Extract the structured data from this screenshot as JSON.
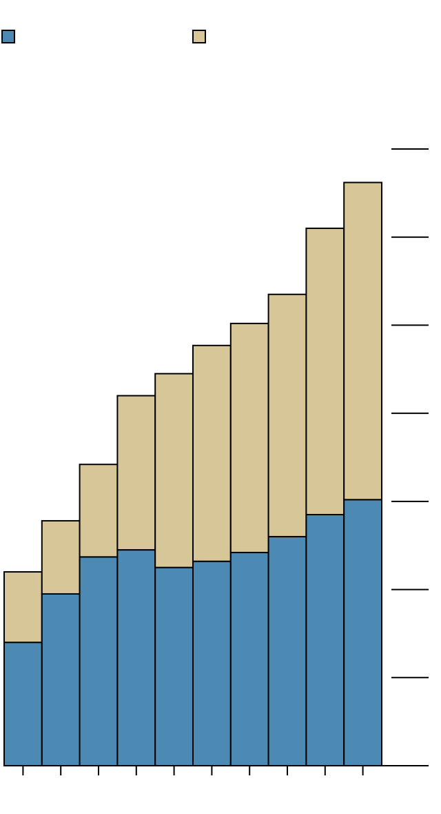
{
  "colors": {
    "series_a": "#4d8ab3",
    "series_b": "#d7c697",
    "stroke": "#000000",
    "background": "#ffffff"
  },
  "chart_data": {
    "type": "bar",
    "stacked": true,
    "categories": [
      "",
      "",
      "",
      "",
      "",
      "",
      "",
      "",
      "",
      ""
    ],
    "series": [
      {
        "values": [
          1.4,
          1.95,
          2.37,
          2.45,
          2.25,
          2.32,
          2.42,
          2.6,
          2.85,
          3.02
        ]
      },
      {
        "values": [
          0.8,
          0.83,
          1.05,
          1.75,
          2.2,
          2.45,
          2.6,
          2.75,
          3.25,
          3.6
        ]
      }
    ],
    "ylim": [
      0,
      7
    ],
    "y_ticks": [
      0,
      1,
      2,
      3,
      4,
      5,
      6,
      7
    ],
    "y_axis_side": "right",
    "legend": {
      "placement": "top-left"
    },
    "grid": false
  }
}
